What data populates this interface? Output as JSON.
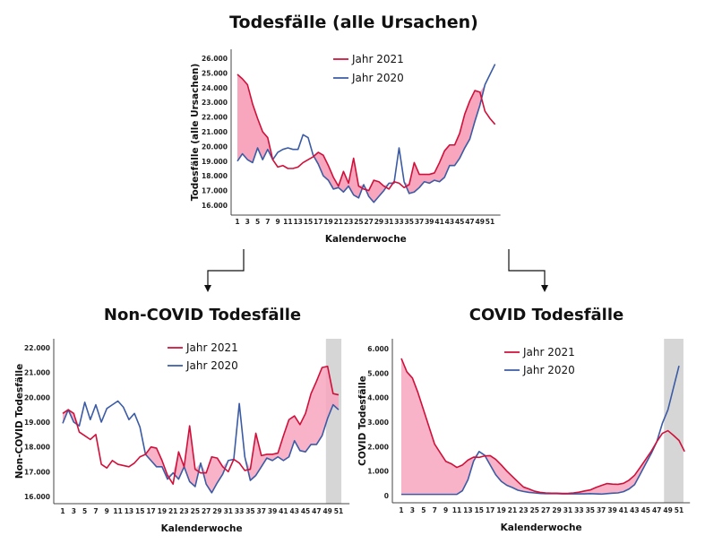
{
  "title": "Todesfälle (alle Ursachen)",
  "colors": {
    "y2021": "#d0103a",
    "y2020": "#3b5ba5",
    "fill": "#f7a6be",
    "band": "#d6d6d6"
  },
  "chart_data": [
    {
      "type": "line",
      "title": "",
      "xlabel": "Kalenderwoche",
      "ylabel": "Todesfälle (alle Ursachen)",
      "ylim": [
        16000,
        26000
      ],
      "yticks": [
        16000,
        17000,
        18000,
        19000,
        20000,
        21000,
        22000,
        23000,
        24000,
        25000,
        26000
      ],
      "ytick_labels": [
        "16.000",
        "17.000",
        "18.000",
        "19.000",
        "20.000",
        "21.000",
        "22.000",
        "23.000",
        "24.000",
        "25.000",
        "26.000"
      ],
      "xticks": [
        1,
        3,
        5,
        7,
        9,
        11,
        13,
        15,
        17,
        19,
        21,
        23,
        25,
        27,
        29,
        31,
        33,
        35,
        37,
        39,
        41,
        43,
        45,
        47,
        49,
        51
      ],
      "legend": "top-center",
      "highlight_weeks": null,
      "series": [
        {
          "name": "Jahr 2021",
          "values": [
            24900,
            24600,
            24200,
            22900,
            21900,
            21000,
            20600,
            19100,
            18600,
            18700,
            18500,
            18500,
            18600,
            18900,
            19100,
            19300,
            19600,
            19400,
            18700,
            17900,
            17300,
            18300,
            17500,
            19200,
            17300,
            17100,
            17000,
            17700,
            17600,
            17300,
            17100,
            17600,
            17500,
            17200,
            17400,
            18900,
            18100,
            18100,
            18100,
            18200,
            18900,
            19700,
            20100,
            20100,
            20900,
            22200,
            23100,
            23800,
            23700,
            22400,
            21900,
            21500
          ]
        },
        {
          "name": "Jahr 2020",
          "values": [
            19000,
            19500,
            19100,
            18900,
            19900,
            19100,
            19800,
            19100,
            19600,
            19800,
            19900,
            19800,
            19800,
            20800,
            20600,
            19400,
            18800,
            18000,
            17700,
            17100,
            17200,
            16900,
            17300,
            16700,
            16500,
            17400,
            16600,
            16200,
            16600,
            17000,
            17500,
            17500,
            19900,
            17600,
            16800,
            16900,
            17200,
            17600,
            17500,
            17700,
            17600,
            17900,
            18700,
            18700,
            19200,
            19900,
            20500,
            21700,
            22800,
            24200,
            24900,
            25600
          ]
        }
      ]
    },
    {
      "type": "line",
      "title": "Non-COVID Todesfälle",
      "xlabel": "Kalenderwoche",
      "ylabel": "Non-COVID Todesfälle",
      "ylim": [
        16000,
        22000
      ],
      "yticks": [
        16000,
        17000,
        18000,
        19000,
        20000,
        21000,
        22000
      ],
      "ytick_labels": [
        "16.000",
        "17.000",
        "18.000",
        "19.000",
        "20.000",
        "21.000",
        "22.000"
      ],
      "xticks": [
        1,
        3,
        5,
        7,
        9,
        11,
        13,
        15,
        17,
        19,
        21,
        23,
        25,
        27,
        29,
        31,
        33,
        35,
        37,
        39,
        41,
        43,
        45,
        47,
        49,
        51
      ],
      "legend": "top-center",
      "highlight_weeks": [
        48.7,
        51.5
      ],
      "series": [
        {
          "name": "Jahr 2021",
          "values": [
            19350,
            19500,
            19350,
            18600,
            18450,
            18300,
            18500,
            17300,
            17150,
            17450,
            17300,
            17250,
            17200,
            17350,
            17600,
            17700,
            18000,
            17950,
            17450,
            16850,
            16500,
            17800,
            17200,
            18850,
            17100,
            16950,
            16950,
            17600,
            17550,
            17200,
            17000,
            17500,
            17350,
            17050,
            17100,
            18550,
            17650,
            17700,
            17700,
            17750,
            18450,
            19100,
            19250,
            18900,
            19350,
            20150,
            20650,
            21200,
            21250,
            20150,
            20100
          ]
        },
        {
          "name": "Jahr 2020",
          "values": [
            18950,
            19500,
            19000,
            18850,
            19800,
            19100,
            19700,
            19000,
            19550,
            19700,
            19850,
            19600,
            19100,
            19350,
            18800,
            17700,
            17450,
            17200,
            17200,
            16700,
            16950,
            16700,
            17200,
            16600,
            16400,
            17350,
            16500,
            16150,
            16550,
            16900,
            17450,
            17500,
            19750,
            17600,
            16650,
            16850,
            17200,
            17550,
            17450,
            17600,
            17450,
            17600,
            18250,
            17850,
            17800,
            18100,
            18100,
            18450,
            19150,
            19700,
            19500
          ]
        }
      ]
    },
    {
      "type": "line",
      "title": "COVID Todesfälle",
      "xlabel": "Kalenderwoche",
      "ylabel": "COVID Todesfälle",
      "ylim": [
        0,
        6000
      ],
      "yticks": [
        0,
        1000,
        2000,
        3000,
        4000,
        5000,
        6000
      ],
      "ytick_labels": [
        "0",
        "1.000",
        "2.000",
        "3.000",
        "4.000",
        "5.000",
        "6.000"
      ],
      "xticks": [
        1,
        3,
        5,
        7,
        9,
        11,
        13,
        15,
        17,
        19,
        21,
        23,
        25,
        27,
        29,
        31,
        33,
        35,
        37,
        39,
        41,
        43,
        45,
        47,
        49,
        51
      ],
      "legend": "top-center",
      "highlight_weeks": [
        48.3,
        51.8
      ],
      "series": [
        {
          "name": "Jahr 2021",
          "values": [
            5600,
            5050,
            4800,
            4200,
            3500,
            2800,
            2100,
            1750,
            1400,
            1300,
            1150,
            1250,
            1450,
            1570,
            1560,
            1620,
            1630,
            1480,
            1250,
            1000,
            780,
            560,
            350,
            270,
            180,
            130,
            110,
            100,
            100,
            90,
            90,
            110,
            140,
            190,
            230,
            330,
            410,
            490,
            470,
            460,
            500,
            630,
            830,
            1150,
            1480,
            1810,
            2200,
            2540,
            2650,
            2460,
            2250,
            1800
          ]
        },
        {
          "name": "Jahr 2020",
          "values": [
            50,
            50,
            50,
            50,
            50,
            50,
            50,
            50,
            50,
            50,
            50,
            200,
            650,
            1400,
            1800,
            1650,
            1250,
            850,
            580,
            420,
            330,
            220,
            170,
            130,
            110,
            90,
            80,
            80,
            80,
            70,
            70,
            70,
            70,
            70,
            80,
            70,
            60,
            80,
            100,
            110,
            160,
            270,
            450,
            870,
            1300,
            1720,
            2200,
            2950,
            3500,
            4400,
            5300
          ]
        }
      ]
    }
  ]
}
